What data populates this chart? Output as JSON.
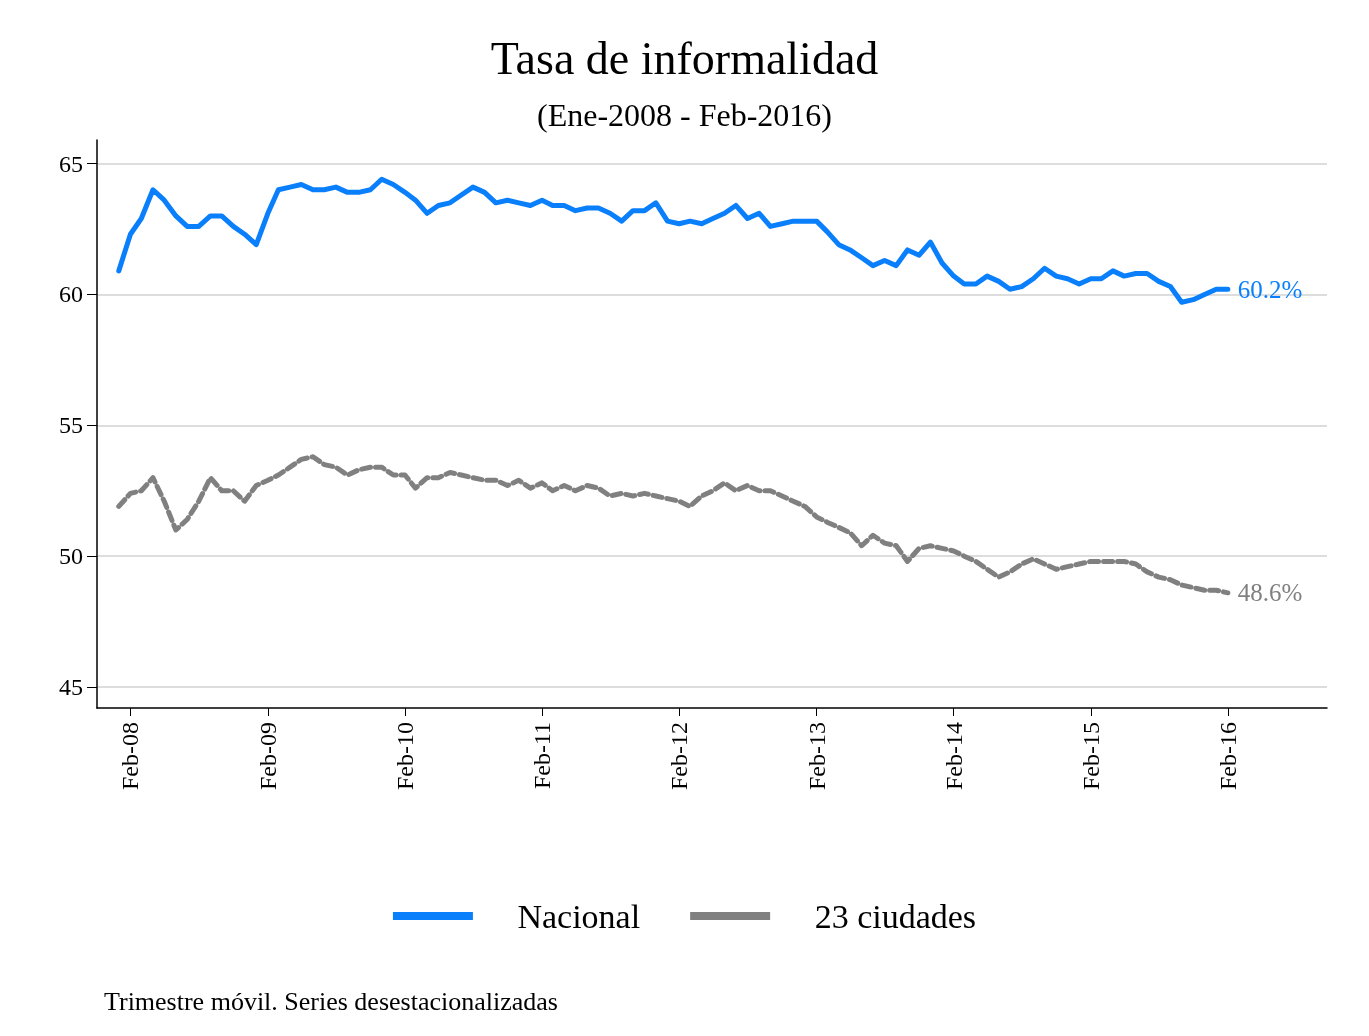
{
  "chart_data": {
    "type": "line",
    "title": "Tasa de informalidad",
    "subtitle": "(Ene-2008 - Feb-2016)",
    "x": [
      "2008-01",
      "2008-02",
      "2008-03",
      "2008-04",
      "2008-05",
      "2008-06",
      "2008-07",
      "2008-08",
      "2008-09",
      "2008-10",
      "2008-11",
      "2008-12",
      "2009-01",
      "2009-02",
      "2009-03",
      "2009-04",
      "2009-05",
      "2009-06",
      "2009-07",
      "2009-08",
      "2009-09",
      "2009-10",
      "2009-11",
      "2009-12",
      "2010-01",
      "2010-02",
      "2010-03",
      "2010-04",
      "2010-05",
      "2010-06",
      "2010-07",
      "2010-08",
      "2010-09",
      "2010-10",
      "2010-11",
      "2010-12",
      "2011-01",
      "2011-02",
      "2011-03",
      "2011-04",
      "2011-05",
      "2011-06",
      "2011-07",
      "2011-08",
      "2011-09",
      "2011-10",
      "2011-11",
      "2011-12",
      "2012-01",
      "2012-02",
      "2012-03",
      "2012-04",
      "2012-05",
      "2012-06",
      "2012-07",
      "2012-08",
      "2012-09",
      "2012-10",
      "2012-11",
      "2012-12",
      "2013-01",
      "2013-02",
      "2013-03",
      "2013-04",
      "2013-05",
      "2013-06",
      "2013-07",
      "2013-08",
      "2013-09",
      "2013-10",
      "2013-11",
      "2013-12",
      "2014-01",
      "2014-02",
      "2014-03",
      "2014-04",
      "2014-05",
      "2014-06",
      "2014-07",
      "2014-08",
      "2014-09",
      "2014-10",
      "2014-11",
      "2014-12",
      "2015-01",
      "2015-02",
      "2015-03",
      "2015-04",
      "2015-05",
      "2015-06",
      "2015-07",
      "2015-08",
      "2015-09",
      "2015-10",
      "2015-11",
      "2015-12",
      "2016-01",
      "2016-02"
    ],
    "series": [
      {
        "name": "Nacional",
        "color": "#0a7ffb",
        "line_style": "solid",
        "values": [
          60.9,
          62.3,
          62.9,
          64.0,
          63.6,
          63.0,
          62.6,
          62.6,
          63.0,
          63.0,
          62.6,
          62.3,
          61.9,
          63.1,
          64.0,
          64.1,
          64.2,
          64.0,
          64.0,
          64.1,
          63.9,
          63.9,
          64.0,
          64.4,
          64.2,
          63.9,
          63.6,
          63.1,
          63.4,
          63.5,
          63.8,
          64.1,
          63.9,
          63.5,
          63.6,
          63.5,
          63.4,
          63.6,
          63.4,
          63.4,
          63.2,
          63.3,
          63.3,
          63.1,
          62.8,
          63.2,
          63.2,
          63.5,
          62.8,
          62.7,
          62.8,
          62.7,
          62.9,
          63.1,
          63.4,
          62.9,
          63.1,
          62.6,
          62.7,
          62.8,
          62.8,
          62.8,
          62.4,
          61.9,
          61.7,
          61.4,
          61.1,
          61.3,
          61.1,
          61.7,
          61.5,
          62.0,
          61.2,
          60.7,
          60.4,
          60.4,
          60.7,
          60.5,
          60.2,
          60.3,
          60.6,
          61.0,
          60.7,
          60.6,
          60.4,
          60.6,
          60.6,
          60.9,
          60.7,
          60.8,
          60.8,
          60.5,
          60.3,
          59.7,
          59.8,
          60.0,
          60.2,
          60.2
        ]
      },
      {
        "name": "23 ciudades",
        "color": "#808080",
        "line_style": "dashed",
        "values": [
          51.9,
          52.4,
          52.5,
          53.0,
          52.1,
          51.0,
          51.4,
          52.1,
          53.0,
          52.5,
          52.5,
          52.1,
          52.7,
          52.9,
          53.1,
          53.4,
          53.7,
          53.8,
          53.5,
          53.4,
          53.1,
          53.3,
          53.4,
          53.4,
          53.1,
          53.1,
          52.6,
          53.0,
          53.0,
          53.2,
          53.1,
          53.0,
          52.9,
          52.9,
          52.7,
          52.9,
          52.6,
          52.8,
          52.5,
          52.7,
          52.5,
          52.7,
          52.6,
          52.3,
          52.4,
          52.3,
          52.4,
          52.3,
          52.2,
          52.1,
          51.9,
          52.3,
          52.5,
          52.8,
          52.5,
          52.7,
          52.5,
          52.5,
          52.3,
          52.1,
          51.9,
          51.5,
          51.3,
          51.1,
          50.9,
          50.4,
          50.8,
          50.5,
          50.4,
          49.8,
          50.3,
          50.4,
          50.3,
          50.2,
          50.0,
          49.8,
          49.5,
          49.2,
          49.4,
          49.7,
          49.9,
          49.7,
          49.5,
          49.6,
          49.7,
          49.8,
          49.8,
          49.8,
          49.8,
          49.7,
          49.4,
          49.2,
          49.1,
          48.9,
          48.8,
          48.7,
          48.7,
          48.6
        ]
      }
    ],
    "xlim": [
      "2007-11-04",
      "2016-10-22"
    ],
    "xticks": [
      {
        "value": "2008-02",
        "label": "Feb-08"
      },
      {
        "value": "2009-02",
        "label": "Feb-09"
      },
      {
        "value": "2010-02",
        "label": "Feb-10"
      },
      {
        "value": "2011-02",
        "label": "Feb-11"
      },
      {
        "value": "2012-02",
        "label": "Feb-12"
      },
      {
        "value": "2013-02",
        "label": "Feb-13"
      },
      {
        "value": "2014-02",
        "label": "Feb-14"
      },
      {
        "value": "2015-02",
        "label": "Feb-15"
      },
      {
        "value": "2016-02",
        "label": "Feb-16"
      }
    ],
    "ylim": [
      44.2,
      65.9
    ],
    "yticks": [
      45,
      50,
      55,
      60,
      65
    ],
    "grid": "y",
    "legend": "bottom",
    "marker": "none",
    "annotations": [
      {
        "text": "60.2%",
        "x": "2016-02",
        "y": 60.2
      },
      {
        "text": "48.6%",
        "x": "2016-02",
        "y": 48.6
      },
      "Trimestre móvil. Series desestacionalizadas"
    ]
  }
}
